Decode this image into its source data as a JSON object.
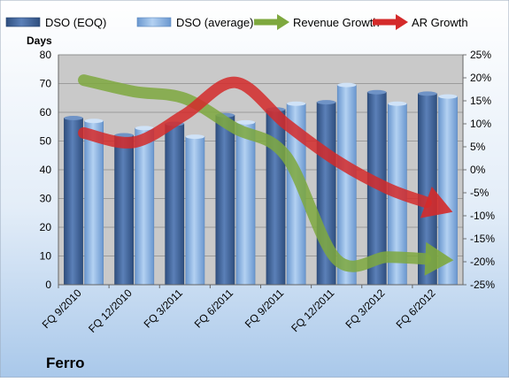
{
  "chart_data": {
    "type": "bar",
    "title": "Ferro",
    "ylabel": "Days",
    "xlabel": "",
    "categories": [
      "FQ 9/2010",
      "FQ 12/2010",
      "FQ 3/2011",
      "FQ 6/2011",
      "FQ 9/2011",
      "FQ 12/2011",
      "FQ 3/2012",
      "FQ 6/2012"
    ],
    "ylim": [
      0,
      80
    ],
    "yticks": [
      0,
      10,
      20,
      30,
      40,
      50,
      60,
      70,
      80
    ],
    "y2lim": [
      -25,
      25
    ],
    "y2ticks": [
      "25%",
      "20%",
      "15%",
      "10%",
      "5%",
      "0%",
      "-5%",
      "-10%",
      "-15%",
      "-20%",
      "-25%"
    ],
    "y2tick_values": [
      25,
      20,
      15,
      10,
      5,
      0,
      -5,
      -10,
      -15,
      -20,
      -25
    ],
    "series": [
      {
        "name": "DSO (EOQ)",
        "kind": "bar",
        "color": "#4a6fa5",
        "values": [
          58,
          52,
          56,
          59,
          61,
          63.5,
          67,
          66.5
        ]
      },
      {
        "name": "DSO (average)",
        "kind": "bar",
        "color": "#8fb4e3",
        "values": [
          57,
          54.5,
          51.5,
          56.5,
          63,
          69.5,
          63,
          65.5
        ]
      },
      {
        "name": "Revenue Growth",
        "kind": "arrow-line",
        "axis": "right",
        "color": "#7ea83e",
        "values": [
          19.5,
          17,
          15.5,
          9,
          3,
          -19.5,
          -19,
          -19.5
        ]
      },
      {
        "name": "AR Growth",
        "kind": "arrow-line",
        "axis": "right",
        "color": "#d42a2a",
        "values": [
          8,
          6,
          12,
          19,
          10,
          2,
          -4,
          -8
        ]
      }
    ],
    "grid": true,
    "legend_position": "top",
    "colors": {
      "plot_bg": "#c9c9c9",
      "page_bg_top": "#ffffff",
      "page_bg_bottom": "#a9c8ea"
    }
  }
}
